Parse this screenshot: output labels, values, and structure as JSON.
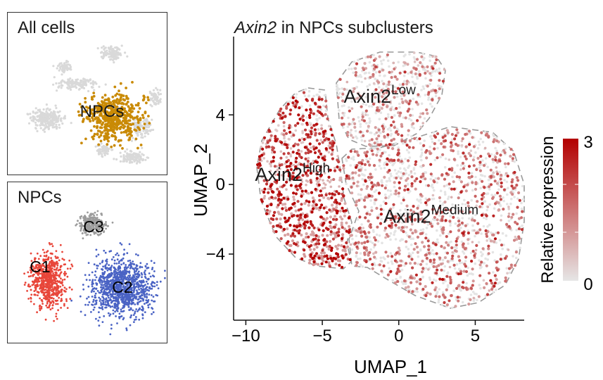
{
  "inset_all": {
    "title": "All cells",
    "highlight_label": "NPCs",
    "highlight_color": "#c98a05",
    "background_color": "#d9d9d9"
  },
  "inset_npc": {
    "title": "NPCs",
    "clusters": [
      {
        "label": "C1",
        "color": "#e8463a"
      },
      {
        "label": "C2",
        "color": "#4a63c4"
      },
      {
        "label": "C3",
        "color": "#9c9c9c"
      }
    ]
  },
  "chart_data": {
    "type": "scatter",
    "title_italic": "Axin2",
    "title_rest": " in NPCs subclusters",
    "xlabel": "UMAP_1",
    "ylabel": "UMAP_2",
    "xlim": [
      -10.8,
      8.2
    ],
    "ylim": [
      -7.8,
      8.5
    ],
    "xticks": [
      -10,
      -5,
      0,
      5
    ],
    "xtick_labels": [
      "−10",
      "−5",
      "0",
      "5"
    ],
    "yticks": [
      -4,
      0,
      4
    ],
    "ytick_labels": [
      "−4",
      "0",
      "4"
    ],
    "grid": false,
    "clusters": [
      {
        "label_base": "Axin2",
        "label_sup": "High",
        "label_x": -9.4,
        "label_y": 0.2,
        "mean_expression": 2.1
      },
      {
        "label_base": "Axin2",
        "label_sup": "Low",
        "label_x": -3.6,
        "label_y": 4.7,
        "mean_expression": 0.7
      },
      {
        "label_base": "Axin2",
        "label_sup": "Medium",
        "label_x": -1.0,
        "label_y": -2.2,
        "mean_expression": 1.1
      }
    ],
    "colorbar": {
      "title": "Relative expression",
      "min": 0,
      "max": 3,
      "min_label": "0",
      "max_label": "3",
      "low_color": "#e6e6e6",
      "high_color": "#b30000"
    }
  }
}
